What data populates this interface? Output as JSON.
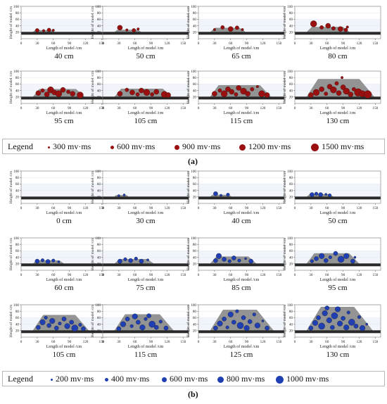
{
  "axes": {
    "xlabel": "Length of model /cm",
    "ylabel": "Height of model /cm",
    "xticks": [
      "0",
      "30",
      "60",
      "90",
      "120",
      "150"
    ],
    "yticks": [
      "20",
      "40",
      "60",
      "80",
      "100"
    ]
  },
  "colors": {
    "red_dot": "#9a1010",
    "blue_dot": "#1f3fb3",
    "rock": "#8c8c8c",
    "coal_seam": "#2a2a2a",
    "grid_band": "#e8eef8"
  },
  "part_a": {
    "label": "(a)",
    "legend_title": "Legend",
    "legend_items": [
      "300 mv·ms",
      "600 mv·ms",
      "900 mv·ms",
      "1200 mv·ms",
      "1500 mv·ms"
    ]
  },
  "part_b": {
    "label": "(b)",
    "legend_title": "Legend",
    "legend_items": [
      "200 mv·ms",
      "400 mv·ms",
      "600 mv·ms",
      "800 mv·ms",
      "1000 mv·ms"
    ]
  },
  "chart_data": [
    {
      "type": "scatter",
      "part": "a",
      "caption": "40 cm",
      "xlim": [
        0,
        160
      ],
      "ylim": [
        0,
        100
      ],
      "seam_y": 20,
      "zone_top": 26,
      "zone_x": [
        22,
        62
      ],
      "points": [
        {
          "x": 30,
          "y": 26,
          "v": 600
        },
        {
          "x": 42,
          "y": 25,
          "v": 300
        },
        {
          "x": 52,
          "y": 27,
          "v": 600
        },
        {
          "x": 60,
          "y": 26,
          "v": 300
        }
      ]
    },
    {
      "type": "scatter",
      "part": "a",
      "caption": "50 cm",
      "xlim": [
        0,
        160
      ],
      "ylim": [
        0,
        100
      ],
      "seam_y": 20,
      "zone_top": 27,
      "zone_x": [
        22,
        72
      ],
      "points": [
        {
          "x": 32,
          "y": 34,
          "v": 900
        },
        {
          "x": 45,
          "y": 27,
          "v": 300
        },
        {
          "x": 58,
          "y": 26,
          "v": 600
        },
        {
          "x": 66,
          "y": 30,
          "v": 300
        }
      ]
    },
    {
      "type": "scatter",
      "part": "a",
      "caption": "65 cm",
      "xlim": [
        0,
        160
      ],
      "ylim": [
        0,
        100
      ],
      "seam_y": 20,
      "zone_top": 33,
      "zone_x": [
        22,
        88
      ],
      "points": [
        {
          "x": 30,
          "y": 28,
          "v": 300
        },
        {
          "x": 45,
          "y": 35,
          "v": 600
        },
        {
          "x": 60,
          "y": 30,
          "v": 900
        },
        {
          "x": 72,
          "y": 34,
          "v": 600
        },
        {
          "x": 82,
          "y": 28,
          "v": 300
        }
      ]
    },
    {
      "type": "scatter",
      "part": "a",
      "caption": "80 cm",
      "xlim": [
        0,
        160
      ],
      "ylim": [
        0,
        100
      ],
      "seam_y": 20,
      "zone_top": 36,
      "zone_x": [
        22,
        102
      ],
      "points": [
        {
          "x": 35,
          "y": 46,
          "v": 1200
        },
        {
          "x": 50,
          "y": 35,
          "v": 600
        },
        {
          "x": 62,
          "y": 40,
          "v": 900
        },
        {
          "x": 72,
          "y": 32,
          "v": 600
        },
        {
          "x": 85,
          "y": 30,
          "v": 900
        },
        {
          "x": 95,
          "y": 27,
          "v": 600
        },
        {
          "x": 98,
          "y": 36,
          "v": 300
        }
      ]
    },
    {
      "type": "scatter",
      "part": "a",
      "caption": "95 cm",
      "xlim": [
        0,
        160
      ],
      "ylim": [
        0,
        100
      ],
      "seam_y": 20,
      "zone_top": 44,
      "zone_x": [
        22,
        118
      ],
      "points": [
        {
          "x": 32,
          "y": 32,
          "v": 900
        },
        {
          "x": 40,
          "y": 40,
          "v": 600
        },
        {
          "x": 48,
          "y": 28,
          "v": 900
        },
        {
          "x": 55,
          "y": 42,
          "v": 1200
        },
        {
          "x": 62,
          "y": 34,
          "v": 900
        },
        {
          "x": 70,
          "y": 30,
          "v": 1200
        },
        {
          "x": 78,
          "y": 42,
          "v": 900
        },
        {
          "x": 88,
          "y": 36,
          "v": 600
        },
        {
          "x": 96,
          "y": 30,
          "v": 900
        },
        {
          "x": 110,
          "y": 26,
          "v": 1200
        }
      ]
    },
    {
      "type": "scatter",
      "part": "a",
      "caption": "105 cm",
      "xlim": [
        0,
        160
      ],
      "ylim": [
        0,
        100
      ],
      "seam_y": 20,
      "zone_top": 45,
      "zone_x": [
        22,
        128
      ],
      "points": [
        {
          "x": 32,
          "y": 30,
          "v": 900
        },
        {
          "x": 45,
          "y": 42,
          "v": 600
        },
        {
          "x": 55,
          "y": 34,
          "v": 900
        },
        {
          "x": 65,
          "y": 28,
          "v": 600
        },
        {
          "x": 72,
          "y": 40,
          "v": 900
        },
        {
          "x": 82,
          "y": 34,
          "v": 1200
        },
        {
          "x": 92,
          "y": 28,
          "v": 600
        },
        {
          "x": 100,
          "y": 36,
          "v": 900
        },
        {
          "x": 115,
          "y": 28,
          "v": 1200
        },
        {
          "x": 122,
          "y": 26,
          "v": 900
        }
      ]
    },
    {
      "type": "scatter",
      "part": "a",
      "caption": "115 cm",
      "xlim": [
        0,
        160
      ],
      "ylim": [
        0,
        100
      ],
      "seam_y": 20,
      "zone_top": 56,
      "zone_x": [
        22,
        135
      ],
      "points": [
        {
          "x": 30,
          "y": 30,
          "v": 900
        },
        {
          "x": 40,
          "y": 40,
          "v": 600
        },
        {
          "x": 48,
          "y": 30,
          "v": 1200
        },
        {
          "x": 55,
          "y": 44,
          "v": 900
        },
        {
          "x": 62,
          "y": 36,
          "v": 900
        },
        {
          "x": 70,
          "y": 28,
          "v": 600
        },
        {
          "x": 75,
          "y": 48,
          "v": 900
        },
        {
          "x": 84,
          "y": 38,
          "v": 1200
        },
        {
          "x": 92,
          "y": 30,
          "v": 900
        },
        {
          "x": 100,
          "y": 44,
          "v": 600
        },
        {
          "x": 110,
          "y": 52,
          "v": 300
        },
        {
          "x": 118,
          "y": 30,
          "v": 1200
        },
        {
          "x": 128,
          "y": 26,
          "v": 900
        }
      ]
    },
    {
      "type": "scatter",
      "part": "a",
      "caption": "130 cm",
      "xlim": [
        0,
        160
      ],
      "ylim": [
        0,
        100
      ],
      "seam_y": 20,
      "zone_top": 75,
      "zone_x": [
        22,
        148
      ],
      "points": [
        {
          "x": 30,
          "y": 26,
          "v": 900
        },
        {
          "x": 40,
          "y": 34,
          "v": 1200
        },
        {
          "x": 50,
          "y": 44,
          "v": 900
        },
        {
          "x": 58,
          "y": 30,
          "v": 600
        },
        {
          "x": 65,
          "y": 52,
          "v": 900
        },
        {
          "x": 72,
          "y": 42,
          "v": 1200
        },
        {
          "x": 78,
          "y": 62,
          "v": 600
        },
        {
          "x": 82,
          "y": 32,
          "v": 900
        },
        {
          "x": 90,
          "y": 50,
          "v": 900
        },
        {
          "x": 96,
          "y": 38,
          "v": 1200
        },
        {
          "x": 104,
          "y": 28,
          "v": 900
        },
        {
          "x": 110,
          "y": 44,
          "v": 600
        },
        {
          "x": 118,
          "y": 34,
          "v": 1500
        },
        {
          "x": 126,
          "y": 30,
          "v": 1200
        },
        {
          "x": 136,
          "y": 28,
          "v": 1500
        },
        {
          "x": 88,
          "y": 80,
          "v": 300
        }
      ]
    },
    {
      "type": "scatter",
      "part": "b",
      "caption": "0 cm",
      "xlim": [
        0,
        160
      ],
      "ylim": [
        0,
        100
      ],
      "seam_y": 20,
      "zone_top": 20,
      "zone_x": [
        22,
        22
      ],
      "points": []
    },
    {
      "type": "scatter",
      "part": "b",
      "caption": "30 cm",
      "xlim": [
        0,
        160
      ],
      "ylim": [
        0,
        100
      ],
      "seam_y": 20,
      "zone_top": 25,
      "zone_x": [
        22,
        48
      ],
      "points": [
        {
          "x": 30,
          "y": 24,
          "v": 200
        },
        {
          "x": 40,
          "y": 26,
          "v": 200
        }
      ]
    },
    {
      "type": "scatter",
      "part": "b",
      "caption": "40 cm",
      "xlim": [
        0,
        160
      ],
      "ylim": [
        0,
        100
      ],
      "seam_y": 20,
      "zone_top": 26,
      "zone_x": [
        22,
        62
      ],
      "points": [
        {
          "x": 32,
          "y": 30,
          "v": 600
        },
        {
          "x": 42,
          "y": 25,
          "v": 200
        },
        {
          "x": 55,
          "y": 27,
          "v": 400
        }
      ]
    },
    {
      "type": "scatter",
      "part": "b",
      "caption": "50 cm",
      "xlim": [
        0,
        160
      ],
      "ylim": [
        0,
        100
      ],
      "seam_y": 20,
      "zone_top": 28,
      "zone_x": [
        22,
        72
      ],
      "points": [
        {
          "x": 32,
          "y": 27,
          "v": 600
        },
        {
          "x": 40,
          "y": 30,
          "v": 400
        },
        {
          "x": 48,
          "y": 27,
          "v": 600
        },
        {
          "x": 58,
          "y": 28,
          "v": 200
        },
        {
          "x": 65,
          "y": 25,
          "v": 400
        }
      ]
    },
    {
      "type": "scatter",
      "part": "b",
      "caption": "60 cm",
      "xlim": [
        0,
        160
      ],
      "ylim": [
        0,
        100
      ],
      "seam_y": 20,
      "zone_top": 30,
      "zone_x": [
        22,
        80
      ],
      "points": [
        {
          "x": 30,
          "y": 28,
          "v": 600
        },
        {
          "x": 40,
          "y": 31,
          "v": 400
        },
        {
          "x": 50,
          "y": 27,
          "v": 600
        },
        {
          "x": 60,
          "y": 30,
          "v": 400
        },
        {
          "x": 70,
          "y": 26,
          "v": 200
        }
      ]
    },
    {
      "type": "scatter",
      "part": "b",
      "caption": "75 cm",
      "xlim": [
        0,
        160
      ],
      "ylim": [
        0,
        100
      ],
      "seam_y": 20,
      "zone_top": 34,
      "zone_x": [
        22,
        95
      ],
      "points": [
        {
          "x": 32,
          "y": 28,
          "v": 600
        },
        {
          "x": 42,
          "y": 34,
          "v": 400
        },
        {
          "x": 52,
          "y": 30,
          "v": 600
        },
        {
          "x": 62,
          "y": 36,
          "v": 400
        },
        {
          "x": 72,
          "y": 28,
          "v": 600
        },
        {
          "x": 84,
          "y": 32,
          "v": 200
        }
      ]
    },
    {
      "type": "scatter",
      "part": "b",
      "caption": "85 cm",
      "xlim": [
        0,
        160
      ],
      "ylim": [
        0,
        100
      ],
      "seam_y": 20,
      "zone_top": 42,
      "zone_x": [
        22,
        108
      ],
      "points": [
        {
          "x": 32,
          "y": 30,
          "v": 600
        },
        {
          "x": 38,
          "y": 44,
          "v": 800
        },
        {
          "x": 48,
          "y": 34,
          "v": 600
        },
        {
          "x": 58,
          "y": 28,
          "v": 400
        },
        {
          "x": 66,
          "y": 38,
          "v": 600
        },
        {
          "x": 76,
          "y": 30,
          "v": 400
        },
        {
          "x": 88,
          "y": 36,
          "v": 200
        },
        {
          "x": 98,
          "y": 28,
          "v": 600
        }
      ]
    },
    {
      "type": "scatter",
      "part": "b",
      "caption": "95 cm",
      "xlim": [
        0,
        160
      ],
      "ylim": [
        0,
        100
      ],
      "seam_y": 20,
      "zone_top": 52,
      "zone_x": [
        22,
        120
      ],
      "points": [
        {
          "x": 32,
          "y": 28,
          "v": 400
        },
        {
          "x": 40,
          "y": 36,
          "v": 600
        },
        {
          "x": 50,
          "y": 44,
          "v": 800
        },
        {
          "x": 58,
          "y": 30,
          "v": 600
        },
        {
          "x": 66,
          "y": 40,
          "v": 400
        },
        {
          "x": 76,
          "y": 52,
          "v": 600
        },
        {
          "x": 86,
          "y": 34,
          "v": 1000
        },
        {
          "x": 96,
          "y": 44,
          "v": 800
        },
        {
          "x": 108,
          "y": 28,
          "v": 600
        },
        {
          "x": 112,
          "y": 40,
          "v": 200
        }
      ]
    },
    {
      "type": "scatter",
      "part": "b",
      "caption": "105 cm",
      "xlim": [
        0,
        160
      ],
      "ylim": [
        0,
        100
      ],
      "seam_y": 20,
      "zone_top": 68,
      "zone_x": [
        22,
        126
      ],
      "points": [
        {
          "x": 32,
          "y": 30,
          "v": 600
        },
        {
          "x": 40,
          "y": 46,
          "v": 800
        },
        {
          "x": 46,
          "y": 60,
          "v": 400
        },
        {
          "x": 52,
          "y": 36,
          "v": 600
        },
        {
          "x": 58,
          "y": 50,
          "v": 800
        },
        {
          "x": 66,
          "y": 28,
          "v": 600
        },
        {
          "x": 72,
          "y": 42,
          "v": 400
        },
        {
          "x": 80,
          "y": 56,
          "v": 600
        },
        {
          "x": 86,
          "y": 34,
          "v": 800
        },
        {
          "x": 94,
          "y": 46,
          "v": 600
        },
        {
          "x": 100,
          "y": 28,
          "v": 1000
        },
        {
          "x": 110,
          "y": 38,
          "v": 400
        },
        {
          "x": 116,
          "y": 26,
          "v": 600
        }
      ]
    },
    {
      "type": "scatter",
      "part": "b",
      "caption": "115 cm",
      "xlim": [
        0,
        160
      ],
      "ylim": [
        0,
        100
      ],
      "seam_y": 20,
      "zone_top": 70,
      "zone_x": [
        22,
        132
      ],
      "points": [
        {
          "x": 30,
          "y": 26,
          "v": 600
        },
        {
          "x": 38,
          "y": 40,
          "v": 800
        },
        {
          "x": 46,
          "y": 56,
          "v": 600
        },
        {
          "x": 54,
          "y": 34,
          "v": 400
        },
        {
          "x": 60,
          "y": 64,
          "v": 800
        },
        {
          "x": 66,
          "y": 46,
          "v": 600
        },
        {
          "x": 74,
          "y": 30,
          "v": 800
        },
        {
          "x": 80,
          "y": 56,
          "v": 400
        },
        {
          "x": 86,
          "y": 66,
          "v": 600
        },
        {
          "x": 92,
          "y": 40,
          "v": 1000
        },
        {
          "x": 100,
          "y": 30,
          "v": 600
        },
        {
          "x": 108,
          "y": 48,
          "v": 400
        },
        {
          "x": 118,
          "y": 28,
          "v": 600
        }
      ]
    },
    {
      "type": "scatter",
      "part": "b",
      "caption": "125 cm",
      "xlim": [
        0,
        160
      ],
      "ylim": [
        0,
        100
      ],
      "seam_y": 20,
      "zone_top": 84,
      "zone_x": [
        22,
        140
      ],
      "points": [
        {
          "x": 32,
          "y": 28,
          "v": 600
        },
        {
          "x": 40,
          "y": 42,
          "v": 800
        },
        {
          "x": 48,
          "y": 56,
          "v": 600
        },
        {
          "x": 54,
          "y": 30,
          "v": 400
        },
        {
          "x": 60,
          "y": 70,
          "v": 800
        },
        {
          "x": 66,
          "y": 46,
          "v": 600
        },
        {
          "x": 72,
          "y": 80,
          "v": 400
        },
        {
          "x": 78,
          "y": 36,
          "v": 1000
        },
        {
          "x": 84,
          "y": 60,
          "v": 600
        },
        {
          "x": 90,
          "y": 28,
          "v": 800
        },
        {
          "x": 96,
          "y": 48,
          "v": 600
        },
        {
          "x": 104,
          "y": 70,
          "v": 400
        },
        {
          "x": 110,
          "y": 36,
          "v": 800
        },
        {
          "x": 120,
          "y": 50,
          "v": 200
        },
        {
          "x": 128,
          "y": 28,
          "v": 600
        }
      ]
    },
    {
      "type": "scatter",
      "part": "b",
      "caption": "130 cm",
      "xlim": [
        0,
        160
      ],
      "ylim": [
        0,
        100
      ],
      "seam_y": 20,
      "zone_top": 93,
      "zone_x": [
        22,
        145
      ],
      "points": [
        {
          "x": 30,
          "y": 28,
          "v": 600
        },
        {
          "x": 38,
          "y": 44,
          "v": 800
        },
        {
          "x": 44,
          "y": 60,
          "v": 600
        },
        {
          "x": 50,
          "y": 34,
          "v": 1000
        },
        {
          "x": 56,
          "y": 74,
          "v": 800
        },
        {
          "x": 60,
          "y": 90,
          "v": 600
        },
        {
          "x": 64,
          "y": 52,
          "v": 800
        },
        {
          "x": 70,
          "y": 30,
          "v": 600
        },
        {
          "x": 74,
          "y": 66,
          "v": 1000
        },
        {
          "x": 80,
          "y": 86,
          "v": 800
        },
        {
          "x": 84,
          "y": 42,
          "v": 800
        },
        {
          "x": 90,
          "y": 58,
          "v": 600
        },
        {
          "x": 96,
          "y": 30,
          "v": 800
        },
        {
          "x": 100,
          "y": 76,
          "v": 400
        },
        {
          "x": 106,
          "y": 46,
          "v": 1000
        },
        {
          "x": 114,
          "y": 34,
          "v": 600
        },
        {
          "x": 120,
          "y": 62,
          "v": 400
        },
        {
          "x": 126,
          "y": 28,
          "v": 800
        },
        {
          "x": 134,
          "y": 40,
          "v": 200
        }
      ]
    }
  ]
}
